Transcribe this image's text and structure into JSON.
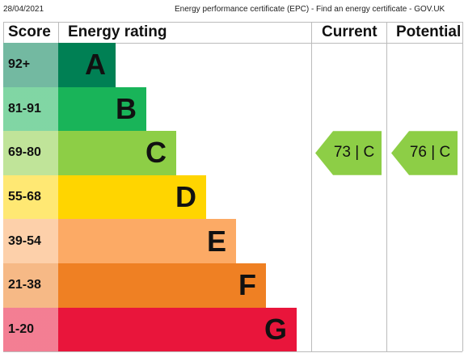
{
  "header": {
    "date": "28/04/2021",
    "title": "Energy performance certificate (EPC) - Find an energy certificate - GOV.UK"
  },
  "table": {
    "columns": [
      "Score",
      "Energy rating",
      "Current",
      "Potential"
    ],
    "bands": [
      {
        "score": "92+",
        "rating": "A",
        "color": "#008054"
      },
      {
        "score": "81-91",
        "rating": "B",
        "color": "#19b459"
      },
      {
        "score": "69-80",
        "rating": "C",
        "color": "#8dce46"
      },
      {
        "score": "55-68",
        "rating": "D",
        "color": "#ffd500"
      },
      {
        "score": "39-54",
        "rating": "E",
        "color": "#fcaa65"
      },
      {
        "score": "21-38",
        "rating": "F",
        "color": "#ef8023"
      },
      {
        "score": "1-20",
        "rating": "G",
        "color": "#e9153b"
      }
    ],
    "current": {
      "label": "73 | C",
      "band": 2
    },
    "potential": {
      "label": "76 | C",
      "band": 2
    }
  }
}
